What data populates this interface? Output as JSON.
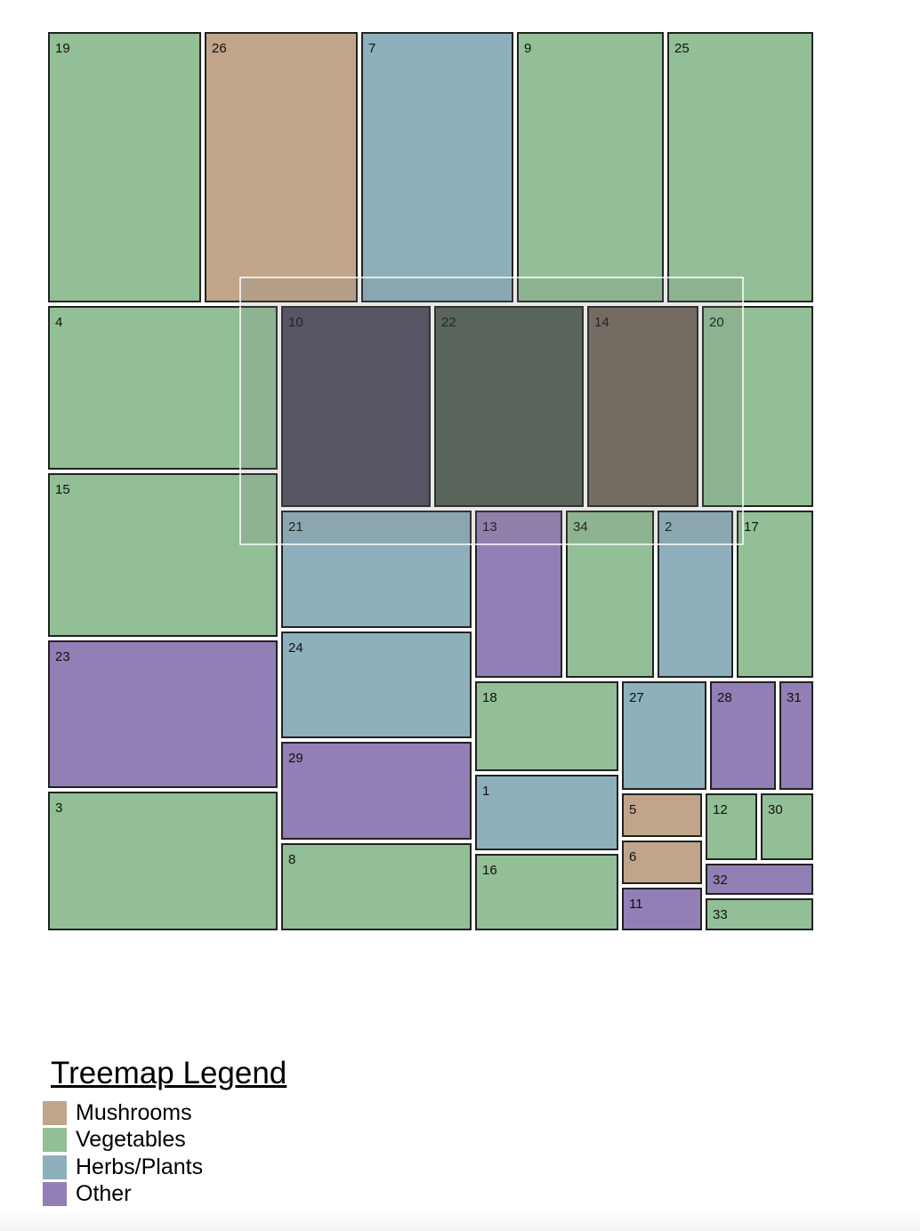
{
  "chart_data": {
    "type": "treemap",
    "categories": [
      {
        "key": "mushrooms",
        "name": "Mushrooms",
        "color": "#c0a58a"
      },
      {
        "key": "vegetables",
        "name": "Vegetables",
        "color": "#92bf95"
      },
      {
        "key": "herbs",
        "name": "Herbs/Plants",
        "color": "#8db0bc"
      },
      {
        "key": "other",
        "name": "Other",
        "color": "#927fb5"
      }
    ],
    "cells": [
      {
        "label": "19",
        "category": "vegetables"
      },
      {
        "label": "26",
        "category": "mushrooms"
      },
      {
        "label": "7",
        "category": "herbs"
      },
      {
        "label": "9",
        "category": "vegetables"
      },
      {
        "label": "25",
        "category": "vegetables"
      },
      {
        "label": "4",
        "category": "vegetables"
      },
      {
        "label": "15",
        "category": "vegetables"
      },
      {
        "label": "23",
        "category": "other"
      },
      {
        "label": "3",
        "category": "vegetables"
      },
      {
        "label": "10",
        "category": "other",
        "selected": true
      },
      {
        "label": "22",
        "category": "vegetables",
        "selected": true
      },
      {
        "label": "14",
        "category": "mushrooms",
        "selected": true
      },
      {
        "label": "20",
        "category": "vegetables"
      },
      {
        "label": "21",
        "category": "herbs"
      },
      {
        "label": "13",
        "category": "other"
      },
      {
        "label": "34",
        "category": "vegetables"
      },
      {
        "label": "2",
        "category": "herbs"
      },
      {
        "label": "17",
        "category": "vegetables"
      },
      {
        "label": "24",
        "category": "herbs"
      },
      {
        "label": "29",
        "category": "other"
      },
      {
        "label": "8",
        "category": "vegetables"
      },
      {
        "label": "18",
        "category": "vegetables"
      },
      {
        "label": "1",
        "category": "herbs"
      },
      {
        "label": "16",
        "category": "vegetables"
      },
      {
        "label": "27",
        "category": "herbs"
      },
      {
        "label": "28",
        "category": "other"
      },
      {
        "label": "31",
        "category": "other"
      },
      {
        "label": "5",
        "category": "mushrooms"
      },
      {
        "label": "6",
        "category": "mushrooms"
      },
      {
        "label": "11",
        "category": "other"
      },
      {
        "label": "12",
        "category": "vegetables"
      },
      {
        "label": "30",
        "category": "vegetables"
      },
      {
        "label": "32",
        "category": "other"
      },
      {
        "label": "33",
        "category": "vegetables"
      }
    ],
    "selected_colors": {
      "other": "#4f4b5d",
      "vegetables": "#515f52",
      "mushrooms": "#72675c"
    }
  },
  "legend": {
    "title": "Treemap Legend"
  }
}
